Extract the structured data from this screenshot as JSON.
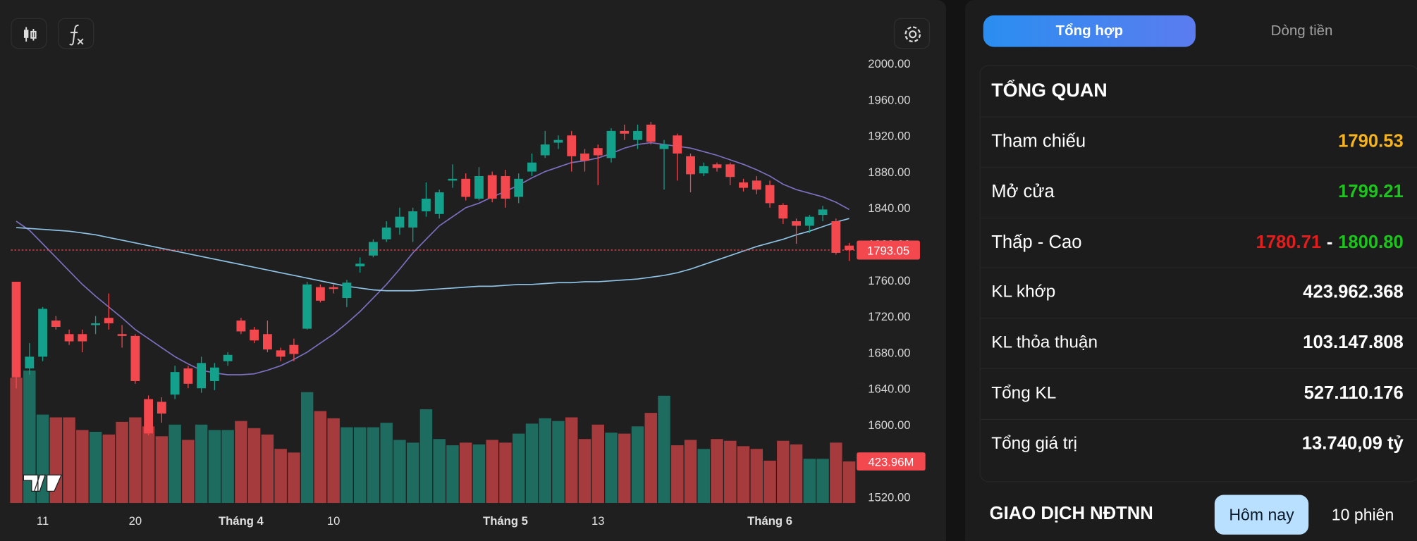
{
  "chart_data": {
    "type": "candlestick",
    "categories": [
      null,
      null,
      "11",
      null,
      null,
      null,
      null,
      null,
      null,
      "20",
      null,
      null,
      null,
      null,
      null,
      null,
      null,
      "Tháng 4",
      null,
      null,
      null,
      null,
      null,
      null,
      "10",
      null,
      null,
      null,
      null,
      null,
      null,
      null,
      null,
      null,
      null,
      null,
      null,
      "Tháng 5",
      null,
      null,
      null,
      null,
      null,
      null,
      "13",
      null,
      null,
      null,
      null,
      null,
      null,
      null,
      null,
      null,
      null,
      null,
      null,
      "Tháng 6",
      null,
      null,
      null,
      null,
      null,
      null
    ],
    "open": [
      1758,
      1662,
      1675,
      1715,
      1700,
      1700,
      1710,
      1718,
      1700,
      1698,
      1628,
      1625,
      1633,
      1662,
      1640,
      1648,
      1670,
      1715,
      1705,
      1700,
      1682,
      1688,
      1706,
      1752,
      1752,
      1740,
      1775,
      1787,
      1805,
      1818,
      1818,
      1836,
      1833,
      1870,
      1872,
      1850,
      1876,
      1875,
      1852,
      1880,
      1898,
      1912,
      1920,
      1900,
      1906,
      1895,
      1925,
      1915,
      1932,
      1905,
      1920,
      1897,
      1878,
      1888,
      1888,
      1868,
      1870,
      1865,
      1843,
      1825,
      1820,
      1832,
      1825,
      1798
    ],
    "high": [
      1758,
      1690,
      1730,
      1720,
      1705,
      1705,
      1720,
      1745,
      1710,
      1700,
      1632,
      1630,
      1665,
      1665,
      1675,
      1668,
      1680,
      1718,
      1708,
      1715,
      1685,
      1695,
      1758,
      1755,
      1755,
      1760,
      1785,
      1805,
      1825,
      1840,
      1840,
      1868,
      1860,
      1888,
      1878,
      1885,
      1880,
      1882,
      1878,
      1900,
      1925,
      1920,
      1925,
      1905,
      1910,
      1928,
      1932,
      1932,
      1935,
      1915,
      1922,
      1900,
      1890,
      1890,
      1890,
      1872,
      1875,
      1870,
      1845,
      1828,
      1832,
      1842,
      1828,
      1801
    ],
    "low": [
      1640,
      1655,
      1670,
      1705,
      1688,
      1680,
      1700,
      1705,
      1685,
      1645,
      1588,
      1602,
      1628,
      1640,
      1635,
      1638,
      1665,
      1700,
      1690,
      1680,
      1670,
      1670,
      1705,
      1735,
      1745,
      1730,
      1768,
      1785,
      1802,
      1810,
      1802,
      1830,
      1828,
      1862,
      1848,
      1848,
      1846,
      1840,
      1845,
      1875,
      1895,
      1905,
      1880,
      1880,
      1865,
      1890,
      1915,
      1905,
      1910,
      1860,
      1870,
      1857,
      1875,
      1880,
      1865,
      1858,
      1855,
      1840,
      1822,
      1800,
      1812,
      1825,
      1788,
      1781
    ],
    "close": [
      1652,
      1675,
      1728,
      1708,
      1692,
      1692,
      1712,
      1712,
      1698,
      1648,
      1590,
      1612,
      1658,
      1645,
      1668,
      1663,
      1677,
      1703,
      1693,
      1683,
      1675,
      1678,
      1755,
      1737,
      1750,
      1757,
      1778,
      1802,
      1818,
      1830,
      1836,
      1850,
      1857,
      1872,
      1852,
      1875,
      1850,
      1850,
      1872,
      1890,
      1910,
      1915,
      1897,
      1892,
      1898,
      1925,
      1922,
      1925,
      1913,
      1910,
      1900,
      1877,
      1886,
      1884,
      1874,
      1862,
      1860,
      1845,
      1828,
      1820,
      1830,
      1838,
      1790,
      1793
    ],
    "volume": {
      "values": [
        1279,
        1352,
        902,
        874,
        874,
        745,
        727,
        699,
        828,
        874,
        782,
        681,
        800,
        644,
        800,
        745,
        745,
        837,
        764,
        699,
        552,
        515,
        1132,
        938,
        865,
        773,
        773,
        773,
        819,
        644,
        616,
        957,
        653,
        589,
        616,
        598,
        644,
        616,
        708,
        810,
        865,
        837,
        874,
        653,
        800,
        718,
        708,
        782,
        920,
        1095,
        589,
        644,
        552,
        653,
        635,
        580,
        552,
        432,
        635,
        598,
        451,
        451,
        616,
        423.96
      ],
      "value_labels": [
        null,
        null,
        null,
        null,
        null,
        null,
        null,
        null,
        null,
        null,
        null,
        null,
        null,
        null,
        null,
        null,
        null,
        null,
        null,
        null,
        null,
        null,
        null,
        null,
        null,
        null,
        null,
        null,
        null,
        null,
        null,
        null,
        null,
        null,
        null,
        null,
        null,
        null,
        null,
        null,
        null,
        null,
        null,
        null,
        null,
        null,
        null,
        null,
        null,
        null,
        null,
        null,
        null,
        null,
        null,
        null,
        null,
        null,
        null,
        null,
        null,
        null,
        null,
        "423.96M"
      ],
      "up_color": "#1e6b5f",
      "down_color": "#a63b3d"
    },
    "up_color": "#13a18c",
    "down_color": "#f4484f",
    "ma_lines": [
      {
        "color": "#7e6fc0",
        "values": [
          1825,
          1815,
          1800,
          1785,
          1770,
          1755,
          1742,
          1730,
          1718,
          1705,
          1695,
          1685,
          1675,
          1667,
          1660,
          1657,
          1655,
          1655,
          1656,
          1660,
          1665,
          1672,
          1680,
          1690,
          1700,
          1712,
          1725,
          1740,
          1755,
          1772,
          1790,
          1805,
          1820,
          1830,
          1840,
          1845,
          1852,
          1858,
          1865,
          1873,
          1880,
          1885,
          1890,
          1892,
          1895,
          1900,
          1906,
          1910,
          1912,
          1910,
          1908,
          1906,
          1902,
          1898,
          1893,
          1888,
          1882,
          1875,
          1866,
          1860,
          1856,
          1852,
          1846,
          1838
        ]
      },
      {
        "color": "#8fc3e6",
        "values": [
          1818,
          1817,
          1816,
          1815,
          1814,
          1812,
          1810,
          1807,
          1804,
          1801,
          1798,
          1795,
          1792,
          1789,
          1786,
          1783,
          1780,
          1777,
          1774,
          1771,
          1768,
          1765,
          1762,
          1759,
          1756,
          1753,
          1751,
          1749,
          1748,
          1748,
          1748,
          1749,
          1750,
          1751,
          1752,
          1753,
          1753,
          1754,
          1755,
          1755,
          1756,
          1757,
          1757,
          1758,
          1758,
          1759,
          1760,
          1761,
          1763,
          1765,
          1768,
          1772,
          1777,
          1782,
          1787,
          1792,
          1797,
          1801,
          1805,
          1810,
          1814,
          1819,
          1824,
          1828
        ]
      }
    ],
    "last_price": 1793.05,
    "last_price_color": "#f4484f",
    "ylim": [
      1520,
      2000
    ],
    "yticks": [
      {
        "value": 1520,
        "label": "1520.00"
      },
      {
        "value": 1560,
        "label": "1560.00"
      },
      {
        "value": 1600,
        "label": "1600.00"
      },
      {
        "value": 1640,
        "label": "1640.00"
      },
      {
        "value": 1680,
        "label": "1680.00"
      },
      {
        "value": 1720,
        "label": "1720.00"
      },
      {
        "value": 1760,
        "label": "1760.00"
      },
      {
        "value": 1800,
        "label": "1800.00"
      },
      {
        "value": 1840,
        "label": "1840.00"
      },
      {
        "value": 1880,
        "label": "1880.00"
      },
      {
        "value": 1920,
        "label": "1920.00"
      },
      {
        "value": 1960,
        "label": "1960.00"
      },
      {
        "value": 2000,
        "label": "2000.00"
      }
    ]
  },
  "side": {
    "tabs": [
      "Tổng hợp",
      "Dòng tiền"
    ],
    "overview": {
      "title": "TỔNG QUAN",
      "rows": [
        {
          "label": "Tham chiếu",
          "value": "1790.53",
          "color": "#f5b322"
        },
        {
          "label": "Mở cửa",
          "value": "1799.21",
          "color": "#1ec41e"
        },
        {
          "label": "Thấp - Cao",
          "low": "1780.71",
          "low_color": "#e01e1e",
          "separator": "-",
          "high": "1800.80",
          "high_color": "#1ec41e"
        },
        {
          "label": "KL khớp",
          "value": "423.962.368"
        },
        {
          "label": "KL thỏa thuận",
          "value": "103.147.808"
        },
        {
          "label": "Tổng KL",
          "value": "527.110.176"
        },
        {
          "label": "Tổng giá trị",
          "value": "13.740,09 tỷ"
        }
      ]
    },
    "foreign": {
      "title": "GIAO DỊCH NĐTNN",
      "buttons": [
        "Hôm nay",
        "10 phiên"
      ]
    }
  }
}
